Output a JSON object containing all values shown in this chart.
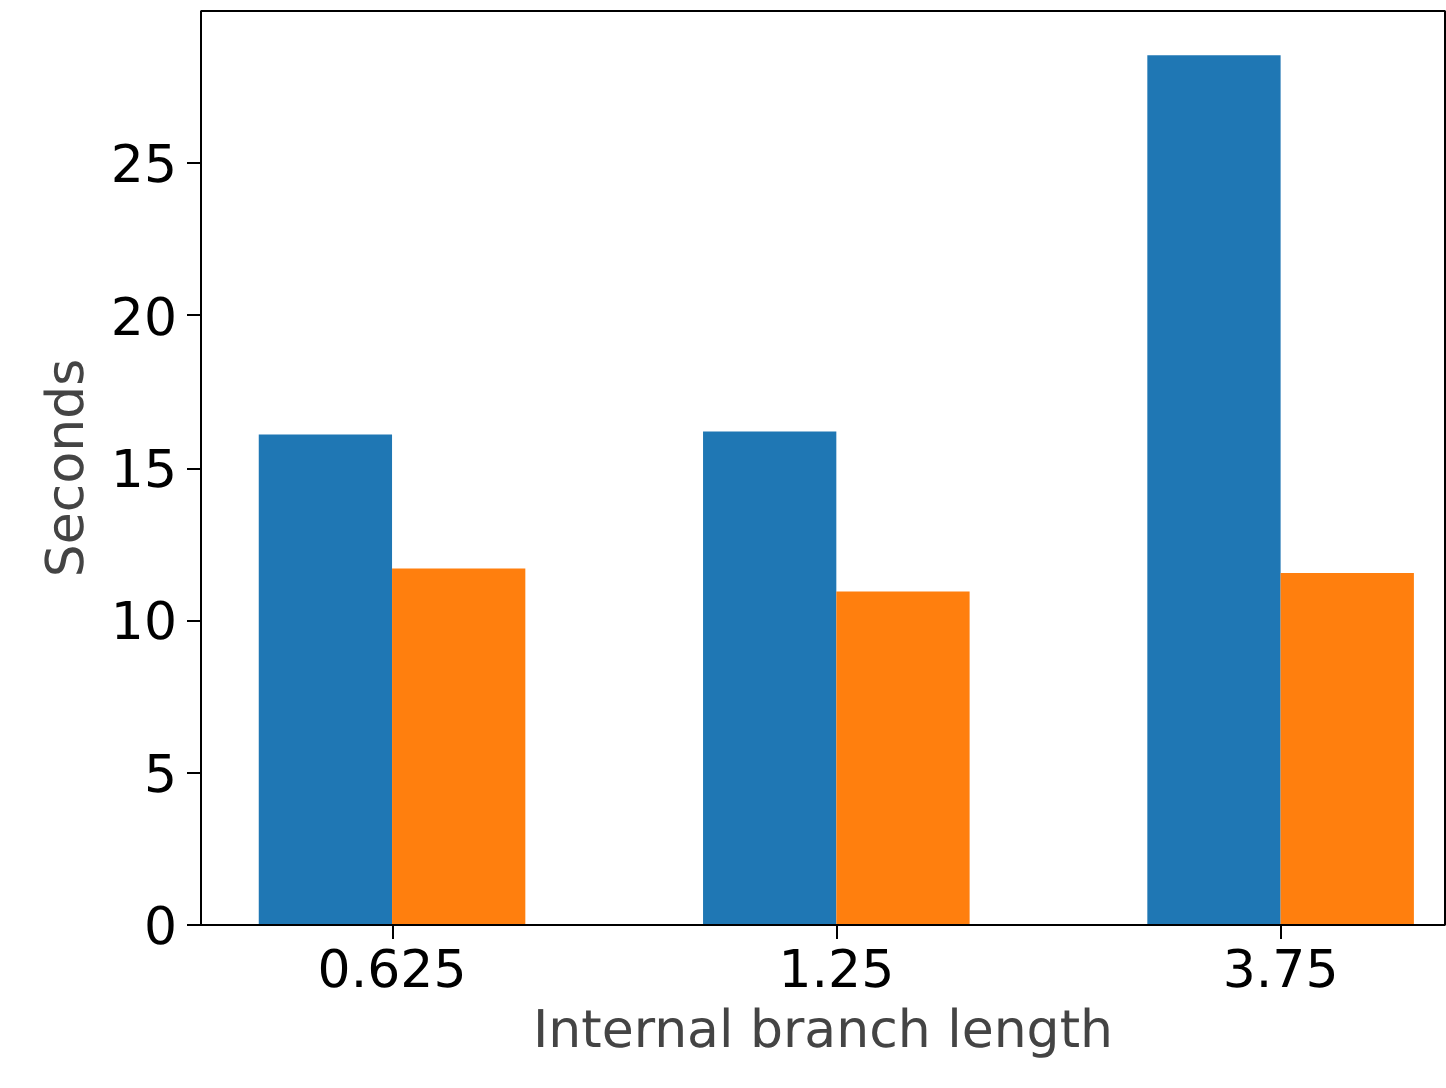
{
  "chart_data": {
    "type": "bar",
    "xlabel": "Internal branch length",
    "ylabel": "Seconds",
    "categories": [
      "0.625",
      "1.25",
      "3.75"
    ],
    "series": [
      {
        "color": "#1f77b4",
        "values": [
          16.1,
          16.2,
          28.55
        ]
      },
      {
        "color": "#ff7f0e",
        "values": [
          11.7,
          10.95,
          11.55
        ]
      }
    ],
    "ylim": [
      0,
      30
    ],
    "yticks": [
      0,
      5,
      10,
      15,
      20,
      25
    ],
    "grid": false,
    "legend": false
  }
}
